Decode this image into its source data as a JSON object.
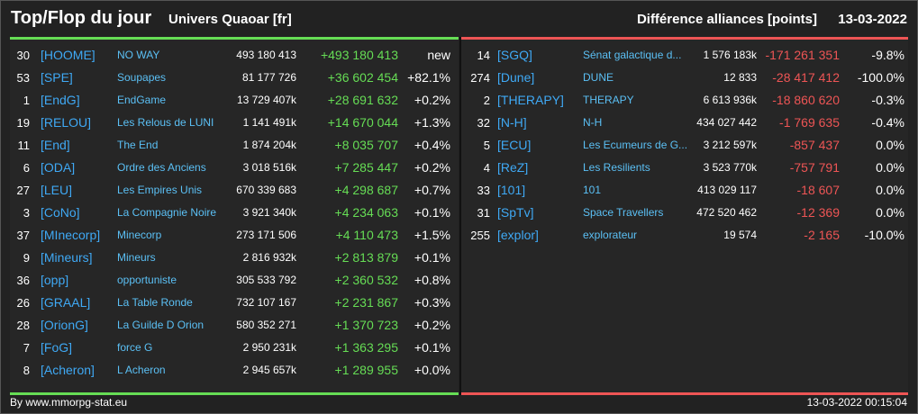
{
  "header": {
    "title": "Top/Flop du jour",
    "universe": "Univers Quaoar [fr]",
    "metric": "Différence alliances [points]",
    "date": "13-03-2022"
  },
  "colors": {
    "gain": "#66dd55",
    "loss": "#ee5555",
    "tag": "#3fa9f5",
    "name": "#5bc0f5"
  },
  "top": [
    {
      "rank": "30",
      "tag": "[HOOME]",
      "name": "NO WAY",
      "score": "493 180 413",
      "diff": "+493 180 413",
      "pct": "new"
    },
    {
      "rank": "53",
      "tag": "[SPE]",
      "name": "Soupapes",
      "score": "81 177 726",
      "diff": "+36 602 454",
      "pct": "+82.1%"
    },
    {
      "rank": "1",
      "tag": "[EndG]",
      "name": "EndGame",
      "score": "13 729 407k",
      "diff": "+28 691 632",
      "pct": "+0.2%"
    },
    {
      "rank": "19",
      "tag": "[RELOU]",
      "name": "Les Relous de LUNI",
      "score": "1 141 491k",
      "diff": "+14 670 044",
      "pct": "+1.3%"
    },
    {
      "rank": "11",
      "tag": "[End]",
      "name": "The End",
      "score": "1 874 204k",
      "diff": "+8 035 707",
      "pct": "+0.4%"
    },
    {
      "rank": "6",
      "tag": "[ODA]",
      "name": "Ordre des Anciens",
      "score": "3 018 516k",
      "diff": "+7 285 447",
      "pct": "+0.2%"
    },
    {
      "rank": "27",
      "tag": "[LEU]",
      "name": "Les Empires Unis",
      "score": "670 339 683",
      "diff": "+4 298 687",
      "pct": "+0.7%"
    },
    {
      "rank": "3",
      "tag": "[CoNo]",
      "name": "La Compagnie Noire",
      "score": "3 921 340k",
      "diff": "+4 234 063",
      "pct": "+0.1%"
    },
    {
      "rank": "37",
      "tag": "[MInecorp]",
      "name": "Minecorp",
      "score": "273 171 506",
      "diff": "+4 110 473",
      "pct": "+1.5%"
    },
    {
      "rank": "9",
      "tag": "[Mineurs]",
      "name": "Mineurs",
      "score": "2 816 932k",
      "diff": "+2 813 879",
      "pct": "+0.1%"
    },
    {
      "rank": "36",
      "tag": "[opp]",
      "name": "opportuniste",
      "score": "305 533 792",
      "diff": "+2 360 532",
      "pct": "+0.8%"
    },
    {
      "rank": "26",
      "tag": "[GRAAL]",
      "name": "La Table Ronde",
      "score": "732 107 167",
      "diff": "+2 231 867",
      "pct": "+0.3%"
    },
    {
      "rank": "28",
      "tag": "[OrionG]",
      "name": "La Guilde D Orion",
      "score": "580 352 271",
      "diff": "+1 370 723",
      "pct": "+0.2%"
    },
    {
      "rank": "7",
      "tag": "[FoG]",
      "name": "force G",
      "score": "2 950 231k",
      "diff": "+1 363 295",
      "pct": "+0.1%"
    },
    {
      "rank": "8",
      "tag": "[Acheron]",
      "name": "L Acheron",
      "score": "2 945 657k",
      "diff": "+1 289 955",
      "pct": "+0.0%"
    }
  ],
  "flop": [
    {
      "rank": "14",
      "tag": "[SGQ]",
      "name": "Sénat galactique d...",
      "score": "1 576 183k",
      "diff": "-171 261 351",
      "pct": "-9.8%"
    },
    {
      "rank": "274",
      "tag": "[Dune]",
      "name": "DUNE",
      "score": "12 833",
      "diff": "-28 417 412",
      "pct": "-100.0%"
    },
    {
      "rank": "2",
      "tag": "[THERAPY]",
      "name": "THERAPY",
      "score": "6 613 936k",
      "diff": "-18 860 620",
      "pct": "-0.3%"
    },
    {
      "rank": "32",
      "tag": "[N-H]",
      "name": "N-H",
      "score": "434 027 442",
      "diff": "-1 769 635",
      "pct": "-0.4%"
    },
    {
      "rank": "5",
      "tag": "[ECU]",
      "name": "Les Ecumeurs de G...",
      "score": "3 212 597k",
      "diff": "-857 437",
      "pct": "0.0%"
    },
    {
      "rank": "4",
      "tag": "[ReZ]",
      "name": "Les Resilients",
      "score": "3 523 770k",
      "diff": "-757 791",
      "pct": "0.0%"
    },
    {
      "rank": "33",
      "tag": "[101]",
      "name": "101",
      "score": "413 029 117",
      "diff": "-18 607",
      "pct": "0.0%"
    },
    {
      "rank": "31",
      "tag": "[SpTv]",
      "name": "Space Travellers",
      "score": "472 520 462",
      "diff": "-12 369",
      "pct": "0.0%"
    },
    {
      "rank": "255",
      "tag": "[explor]",
      "name": "explorateur",
      "score": "19 574",
      "diff": "-2 165",
      "pct": "-10.0%"
    }
  ],
  "footer": {
    "credit": "By www.mmorpg-stat.eu",
    "timestamp": "13-03-2022 00:15:04"
  }
}
